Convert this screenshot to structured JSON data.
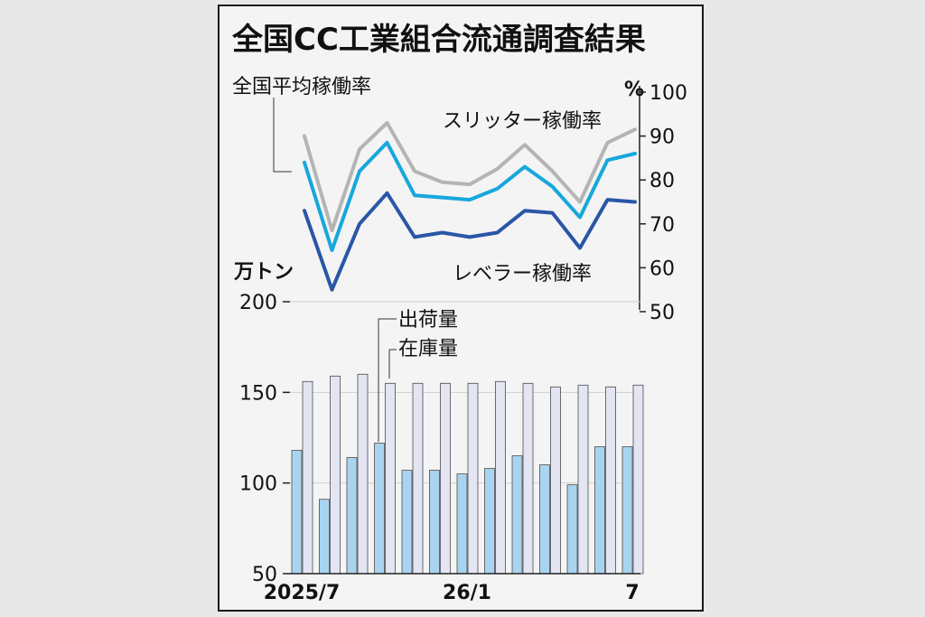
{
  "chart_data": [
    {
      "type": "line",
      "title": "全国CC工業組合流通調査結果",
      "unit_label": "%",
      "ylim": [
        50,
        100
      ],
      "yticks": [
        50,
        60,
        70,
        80,
        90,
        100
      ],
      "series": [
        {
          "name": "全国平均稼働率",
          "color": "#b4b4b4",
          "values": [
            90,
            68.5,
            87,
            93,
            82,
            79.5,
            79,
            82.5,
            88,
            82,
            75,
            88.5,
            91.5
          ]
        },
        {
          "name": "スリッター稼働率",
          "color": "#17a7dc",
          "values": [
            84,
            64,
            82,
            88.5,
            76.5,
            76,
            75.5,
            78,
            83,
            78.5,
            71.5,
            84.5,
            86
          ]
        },
        {
          "name": "レベラー稼働率",
          "color": "#2a56a6",
          "values": [
            73,
            55,
            70,
            77,
            67,
            68,
            67,
            68,
            73,
            72.5,
            64.5,
            75.5,
            75
          ]
        }
      ]
    },
    {
      "type": "bar",
      "unit_label": "万トン",
      "ylim": [
        50,
        200
      ],
      "yticks": [
        50,
        100,
        150,
        200
      ],
      "categories": [
        "2025/7",
        "",
        "",
        "",
        "",
        "",
        "26/1",
        "",
        "",
        "",
        "",
        "",
        "7"
      ],
      "series": [
        {
          "name": "出荷量",
          "color": "#a9d4f0",
          "values": [
            118,
            91,
            114,
            122,
            107,
            107,
            105,
            108,
            115,
            110,
            99,
            120,
            120
          ]
        },
        {
          "name": "在庫量",
          "color": "#e3e6f2",
          "values": [
            156,
            159,
            160,
            155,
            155,
            155,
            155,
            156,
            155,
            153,
            154,
            153,
            154
          ]
        }
      ]
    }
  ]
}
